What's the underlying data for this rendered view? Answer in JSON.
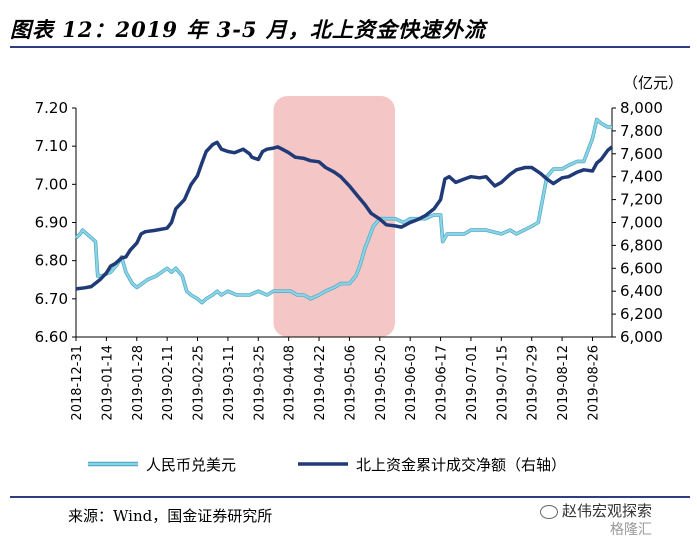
{
  "header": {
    "title": "图表 12：2019 年 3-5 月，北上资金快速外流"
  },
  "footer": {
    "source": "来源：Wind，国金证券研究所"
  },
  "watermark": {
    "line1": "赵伟宏观探索",
    "line2": "格隆汇"
  },
  "chart_data": {
    "type": "line",
    "y2_unit_label": "（亿元）",
    "ylim": [
      6.6,
      7.2
    ],
    "y_ticks": [
      "6.60",
      "6.70",
      "6.80",
      "6.90",
      "7.00",
      "7.10",
      "7.20"
    ],
    "y2lim": [
      6000,
      8000
    ],
    "y2_ticks": [
      "6,000",
      "6,200",
      "6,400",
      "6,600",
      "6,800",
      "7,000",
      "7,200",
      "7,400",
      "7,600",
      "7,800",
      "8,000"
    ],
    "x_ticks": [
      "2018-12-31",
      "2019-01-14",
      "2019-01-28",
      "2019-02-11",
      "2019-02-25",
      "2019-03-11",
      "2019-03-25",
      "2019-04-08",
      "2019-04-22",
      "2019-05-06",
      "2019-05-20",
      "2019-06-03",
      "2019-06-17",
      "2019-07-01",
      "2019-07-15",
      "2019-07-29",
      "2019-08-12",
      "2019-08-26"
    ],
    "x_start": "2018-12-31",
    "x_end": "2019-09-04",
    "highlight": {
      "from": "2019-04-01",
      "to": "2019-05-27",
      "color": "#f4c7c6"
    },
    "legend": {
      "position": "bottom"
    },
    "series": [
      {
        "name": "人民币兑美元",
        "axis": "left",
        "color": "#8dd3e6",
        "points": [
          [
            "2018-12-31",
            6.86
          ],
          [
            "2019-01-02",
            6.87
          ],
          [
            "2019-01-03",
            6.88
          ],
          [
            "2019-01-07",
            6.86
          ],
          [
            "2019-01-09",
            6.85
          ],
          [
            "2019-01-10",
            6.76
          ],
          [
            "2019-01-12",
            6.76
          ],
          [
            "2019-01-16",
            6.77
          ],
          [
            "2019-01-19",
            6.79
          ],
          [
            "2019-01-21",
            6.81
          ],
          [
            "2019-01-23",
            6.77
          ],
          [
            "2019-01-26",
            6.74
          ],
          [
            "2019-01-28",
            6.73
          ],
          [
            "2019-02-02",
            6.75
          ],
          [
            "2019-02-06",
            6.76
          ],
          [
            "2019-02-11",
            6.78
          ],
          [
            "2019-02-13",
            6.77
          ],
          [
            "2019-02-15",
            6.78
          ],
          [
            "2019-02-18",
            6.76
          ],
          [
            "2019-02-20",
            6.72
          ],
          [
            "2019-02-22",
            6.71
          ],
          [
            "2019-02-25",
            6.7
          ],
          [
            "2019-02-27",
            6.69
          ],
          [
            "2019-03-01",
            6.7
          ],
          [
            "2019-03-04",
            6.71
          ],
          [
            "2019-03-06",
            6.72
          ],
          [
            "2019-03-08",
            6.71
          ],
          [
            "2019-03-11",
            6.72
          ],
          [
            "2019-03-15",
            6.71
          ],
          [
            "2019-03-18",
            6.71
          ],
          [
            "2019-03-21",
            6.71
          ],
          [
            "2019-03-25",
            6.72
          ],
          [
            "2019-03-29",
            6.71
          ],
          [
            "2019-04-01",
            6.72
          ],
          [
            "2019-04-05",
            6.72
          ],
          [
            "2019-04-09",
            6.72
          ],
          [
            "2019-04-12",
            6.71
          ],
          [
            "2019-04-15",
            6.71
          ],
          [
            "2019-04-18",
            6.7
          ],
          [
            "2019-04-22",
            6.71
          ],
          [
            "2019-04-25",
            6.72
          ],
          [
            "2019-04-29",
            6.73
          ],
          [
            "2019-05-02",
            6.74
          ],
          [
            "2019-05-06",
            6.74
          ],
          [
            "2019-05-09",
            6.76
          ],
          [
            "2019-05-11",
            6.79
          ],
          [
            "2019-05-13",
            6.83
          ],
          [
            "2019-05-15",
            6.86
          ],
          [
            "2019-05-17",
            6.89
          ],
          [
            "2019-05-20",
            6.91
          ],
          [
            "2019-05-23",
            6.91
          ],
          [
            "2019-05-27",
            6.91
          ],
          [
            "2019-05-31",
            6.9
          ],
          [
            "2019-06-03",
            6.91
          ],
          [
            "2019-06-10",
            6.91
          ],
          [
            "2019-06-14",
            6.92
          ],
          [
            "2019-06-17",
            6.92
          ],
          [
            "2019-06-18",
            6.85
          ],
          [
            "2019-06-20",
            6.87
          ],
          [
            "2019-06-24",
            6.87
          ],
          [
            "2019-06-28",
            6.87
          ],
          [
            "2019-07-01",
            6.88
          ],
          [
            "2019-07-08",
            6.88
          ],
          [
            "2019-07-15",
            6.87
          ],
          [
            "2019-07-19",
            6.88
          ],
          [
            "2019-07-22",
            6.87
          ],
          [
            "2019-07-29",
            6.89
          ],
          [
            "2019-08-01",
            6.9
          ],
          [
            "2019-08-05",
            7.02
          ],
          [
            "2019-08-08",
            7.04
          ],
          [
            "2019-08-12",
            7.04
          ],
          [
            "2019-08-15",
            7.05
          ],
          [
            "2019-08-19",
            7.06
          ],
          [
            "2019-08-22",
            7.06
          ],
          [
            "2019-08-26",
            7.12
          ],
          [
            "2019-08-28",
            7.17
          ],
          [
            "2019-08-30",
            7.16
          ],
          [
            "2019-09-02",
            7.15
          ],
          [
            "2019-09-04",
            7.15
          ]
        ]
      },
      {
        "name": "北上资金累计成交净额（右轴）",
        "axis": "right",
        "color": "#1f3a77",
        "points": [
          [
            "2018-12-31",
            6420
          ],
          [
            "2019-01-04",
            6430
          ],
          [
            "2019-01-07",
            6440
          ],
          [
            "2019-01-09",
            6470
          ],
          [
            "2019-01-11",
            6500
          ],
          [
            "2019-01-14",
            6560
          ],
          [
            "2019-01-16",
            6620
          ],
          [
            "2019-01-18",
            6640
          ],
          [
            "2019-01-21",
            6690
          ],
          [
            "2019-01-23",
            6700
          ],
          [
            "2019-01-25",
            6760
          ],
          [
            "2019-01-28",
            6820
          ],
          [
            "2019-01-30",
            6900
          ],
          [
            "2019-02-01",
            6920
          ],
          [
            "2019-02-05",
            6930
          ],
          [
            "2019-02-11",
            6950
          ],
          [
            "2019-02-13",
            7000
          ],
          [
            "2019-02-15",
            7120
          ],
          [
            "2019-02-19",
            7200
          ],
          [
            "2019-02-22",
            7330
          ],
          [
            "2019-02-25",
            7410
          ],
          [
            "2019-02-27",
            7520
          ],
          [
            "2019-03-01",
            7620
          ],
          [
            "2019-03-04",
            7680
          ],
          [
            "2019-03-06",
            7700
          ],
          [
            "2019-03-08",
            7640
          ],
          [
            "2019-03-11",
            7620
          ],
          [
            "2019-03-14",
            7610
          ],
          [
            "2019-03-18",
            7640
          ],
          [
            "2019-03-21",
            7600
          ],
          [
            "2019-03-22",
            7570
          ],
          [
            "2019-03-25",
            7550
          ],
          [
            "2019-03-27",
            7620
          ],
          [
            "2019-03-29",
            7640
          ],
          [
            "2019-04-01",
            7650
          ],
          [
            "2019-04-03",
            7660
          ],
          [
            "2019-04-05",
            7640
          ],
          [
            "2019-04-08",
            7610
          ],
          [
            "2019-04-11",
            7570
          ],
          [
            "2019-04-15",
            7560
          ],
          [
            "2019-04-18",
            7540
          ],
          [
            "2019-04-22",
            7530
          ],
          [
            "2019-04-25",
            7480
          ],
          [
            "2019-04-29",
            7440
          ],
          [
            "2019-05-02",
            7400
          ],
          [
            "2019-05-06",
            7320
          ],
          [
            "2019-05-09",
            7250
          ],
          [
            "2019-05-13",
            7160
          ],
          [
            "2019-05-16",
            7080
          ],
          [
            "2019-05-20",
            7030
          ],
          [
            "2019-05-23",
            6980
          ],
          [
            "2019-05-27",
            6970
          ],
          [
            "2019-05-30",
            6960
          ],
          [
            "2019-06-03",
            7000
          ],
          [
            "2019-06-07",
            7030
          ],
          [
            "2019-06-10",
            7060
          ],
          [
            "2019-06-14",
            7120
          ],
          [
            "2019-06-17",
            7200
          ],
          [
            "2019-06-19",
            7380
          ],
          [
            "2019-06-21",
            7400
          ],
          [
            "2019-06-24",
            7350
          ],
          [
            "2019-06-28",
            7380
          ],
          [
            "2019-07-01",
            7400
          ],
          [
            "2019-07-05",
            7390
          ],
          [
            "2019-07-08",
            7400
          ],
          [
            "2019-07-12",
            7320
          ],
          [
            "2019-07-15",
            7350
          ],
          [
            "2019-07-19",
            7420
          ],
          [
            "2019-07-22",
            7460
          ],
          [
            "2019-07-26",
            7480
          ],
          [
            "2019-07-29",
            7480
          ],
          [
            "2019-08-02",
            7430
          ],
          [
            "2019-08-05",
            7380
          ],
          [
            "2019-08-08",
            7340
          ],
          [
            "2019-08-12",
            7390
          ],
          [
            "2019-08-15",
            7400
          ],
          [
            "2019-08-19",
            7440
          ],
          [
            "2019-08-22",
            7460
          ],
          [
            "2019-08-26",
            7450
          ],
          [
            "2019-08-28",
            7520
          ],
          [
            "2019-08-30",
            7550
          ],
          [
            "2019-09-02",
            7630
          ],
          [
            "2019-09-04",
            7660
          ]
        ]
      }
    ]
  }
}
